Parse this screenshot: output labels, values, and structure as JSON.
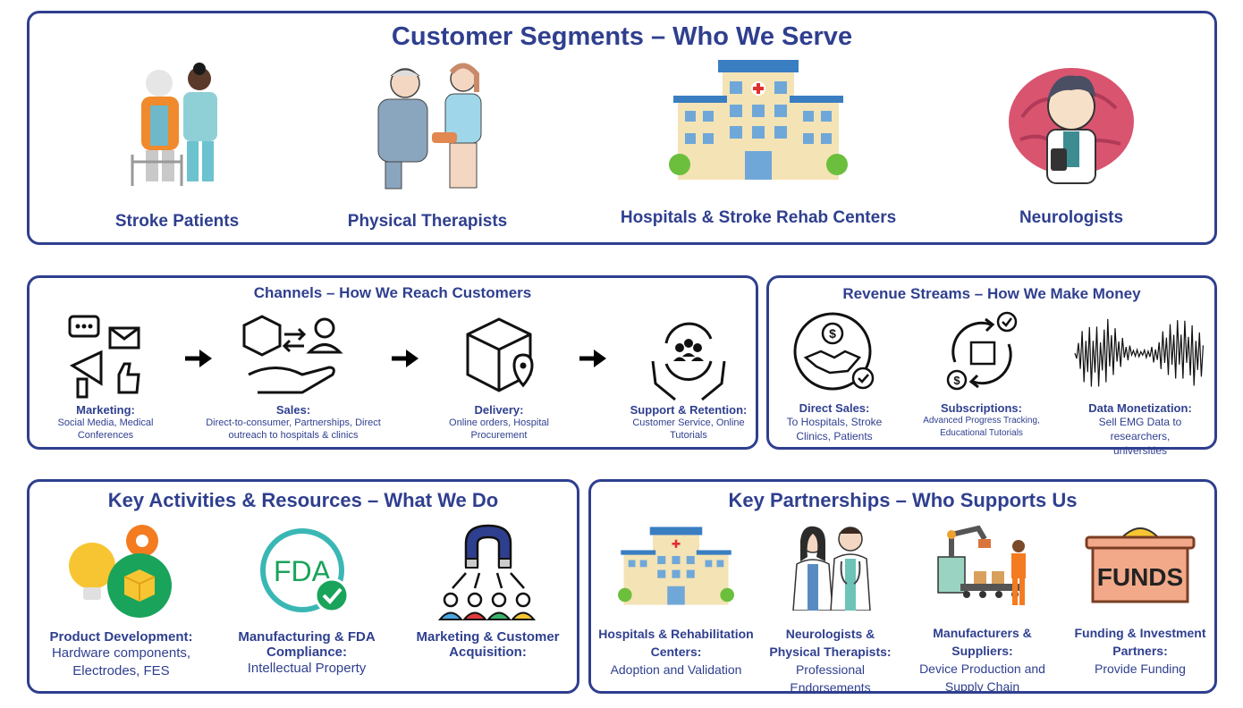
{
  "segments": {
    "title": "Customer Segments – Who We Serve",
    "items": [
      {
        "label": "Stroke Patients"
      },
      {
        "label": "Physical Therapists"
      },
      {
        "label": "Hospitals & Stroke Rehab Centers"
      },
      {
        "label": "Neurologists"
      }
    ]
  },
  "channels": {
    "title": "Channels – How We Reach Customers",
    "items": [
      {
        "label": "Marketing:",
        "desc": "Social Media, Medical Conferences"
      },
      {
        "label": "Sales:",
        "desc": "Direct-to-consumer, Partnerships, Direct outreach to hospitals & clinics"
      },
      {
        "label": "Delivery:",
        "desc": "Online orders, Hospital Procurement"
      },
      {
        "label": "Support & Retention:",
        "desc": "Customer Service, Online Tutorials"
      }
    ]
  },
  "revenue": {
    "title": "Revenue Streams – How We Make Money",
    "items": [
      {
        "label": "Direct Sales:",
        "desc": "To Hospitals, Stroke Clinics, Patients"
      },
      {
        "label": "Subscriptions:",
        "desc": "Advanced Progress Tracking, Educational Tutorials"
      },
      {
        "label": "Data Monetization:",
        "desc": "Sell EMG Data to researchers, universities"
      }
    ]
  },
  "activities": {
    "title": "Key Activities & Resources – What We Do",
    "fda_text": "FDA",
    "items": [
      {
        "label": "Product Development:",
        "desc": "Hardware components, Electrodes, FES"
      },
      {
        "label": "Manufacturing & FDA Compliance:",
        "desc": "Intellectual Property"
      },
      {
        "label": "Marketing & Customer Acquisition:",
        "desc": ""
      }
    ]
  },
  "partnerships": {
    "title": "Key Partnerships – Who Supports Us",
    "funds_text": "FUNDS",
    "items": [
      {
        "label": "Hospitals & Rehabilitation Centers:",
        "desc": "Adoption and Validation"
      },
      {
        "label": "Neurologists & Physical Therapists:",
        "desc": "Professional Endorsements"
      },
      {
        "label": "Manufacturers & Suppliers:",
        "desc": "Device Production and Supply Chain"
      },
      {
        "label": "Funding & Investment Partners:",
        "desc": "Provide Funding"
      }
    ]
  },
  "colors": {
    "navy": "#2f3f8f",
    "green": "#19a35b",
    "orange": "#f47b20",
    "brown": "#7a3e24"
  }
}
